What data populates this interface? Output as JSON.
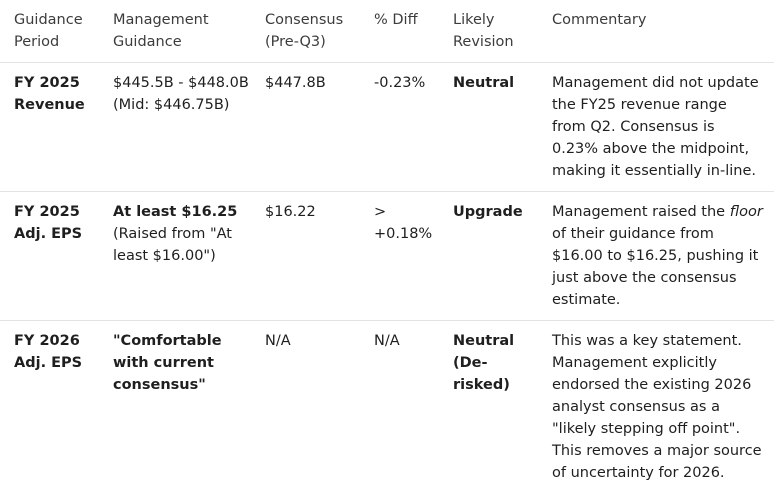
{
  "table": {
    "headers": [
      "Guidance Period",
      "Management Guidance",
      "Consensus (Pre-Q3)",
      "% Diff",
      "Likely Revision",
      "Commentary"
    ],
    "rows": [
      [
        "FY 2025 Revenue",
        "$445.5B - $448.0B (Mid: $446.75B)",
        "$447.8B",
        "-0.23%",
        "Neutral",
        "Management did not update the FY25 revenue range from Q2. Consensus is 0.23% above the midpoint, making it essentially in-line."
      ],
      [
        "FY 2025 Adj. EPS",
        [
          "At least $16.25",
          "(Raised from \"At least $16.00\")"
        ],
        "$16.22",
        "> +0.18%",
        "Upgrade",
        [
          "Management raised the ",
          "floor",
          " of their guidance from $16.00 to $16.25, pushing it just above the consensus estimate."
        ]
      ],
      [
        "FY 2026 Adj. EPS",
        "\"Comfortable with current consensus\"",
        "N/A",
        "N/A",
        "Neutral (De-risked)",
        "This was a key statement. Management explicitly endorsed the existing 2026 analyst consensus as a \"likely stepping off point\". This removes a major source of uncertainty for 2026."
      ]
    ]
  }
}
